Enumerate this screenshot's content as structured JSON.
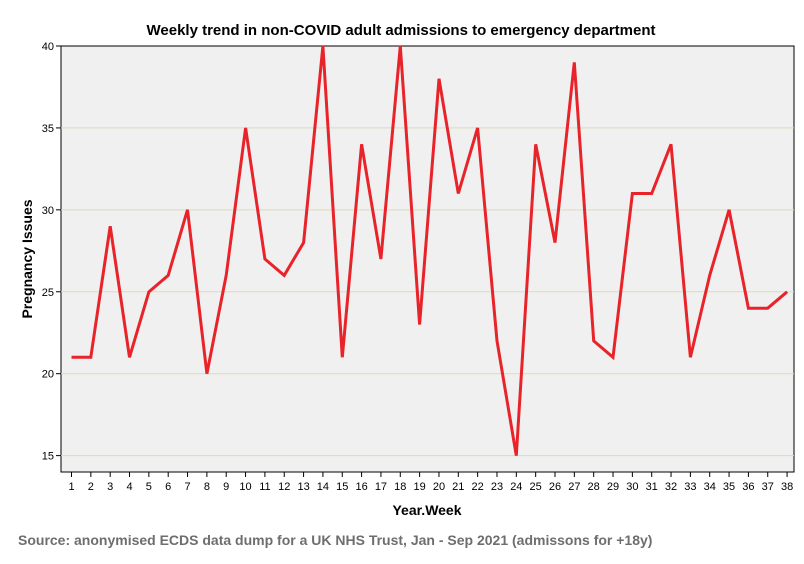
{
  "chart_data": {
    "type": "line",
    "title": "Weekly trend in non-COVID adult admissions to emergency department",
    "xlabel": "Year.Week",
    "ylabel": "Pregnancy Issues",
    "source": "Source: anonymised ECDS data dump for a UK NHS Trust, Jan - Sep 2021 (admissons for +18y)",
    "ylim": [
      14,
      40
    ],
    "yticks": [
      15,
      20,
      25,
      30,
      35,
      40
    ],
    "grid": "horizontal",
    "categories": [
      "1",
      "2",
      "3",
      "4",
      "5",
      "6",
      "7",
      "8",
      "9",
      "10",
      "11",
      "12",
      "13",
      "14",
      "15",
      "16",
      "17",
      "18",
      "19",
      "20",
      "21",
      "22",
      "23",
      "24",
      "25",
      "26",
      "27",
      "28",
      "29",
      "30",
      "31",
      "32",
      "33",
      "34",
      "35",
      "36",
      "37",
      "38"
    ],
    "values": [
      21,
      21,
      29,
      21,
      25,
      26,
      30,
      20,
      26,
      35,
      27,
      26,
      28,
      40,
      21,
      34,
      27,
      40,
      23,
      38,
      31,
      35,
      22,
      15,
      34,
      28,
      39,
      22,
      21,
      31,
      31,
      34,
      21,
      26,
      30,
      24,
      24,
      25
    ],
    "colors": {
      "line": "#e8232a",
      "plot_background": "#f0f0f0",
      "grid": "#dcdcb4",
      "source_text": "#6e6e6e"
    }
  }
}
